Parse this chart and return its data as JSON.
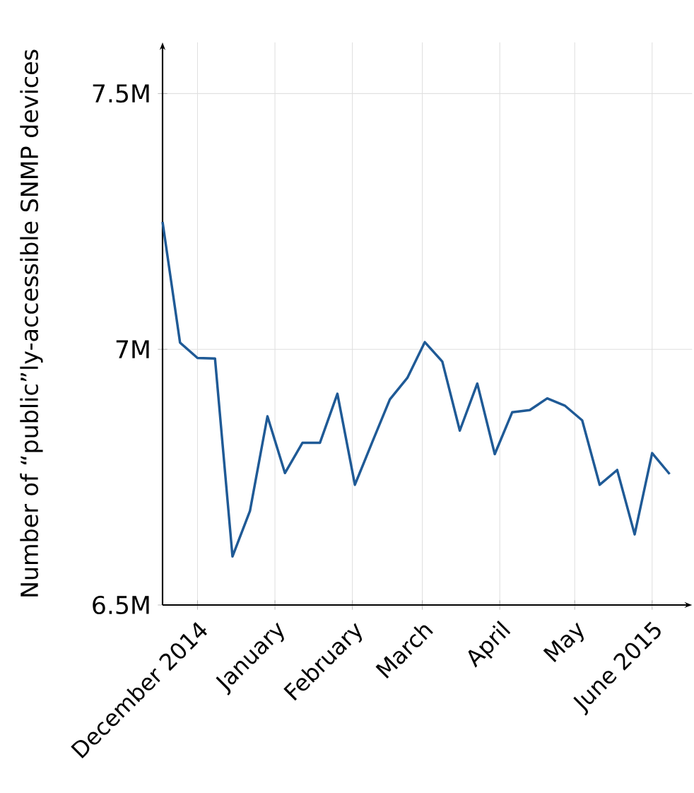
{
  "chart_data": {
    "type": "line",
    "ylabel": "Number of “public”ly-accessible SNMP devices",
    "x": [
      "2014-11-17",
      "2014-11-24",
      "2014-12-01",
      "2014-12-08",
      "2014-12-15",
      "2014-12-22",
      "2014-12-29",
      "2015-01-05",
      "2015-01-12",
      "2015-01-19",
      "2015-01-26",
      "2015-02-02",
      "2015-02-09",
      "2015-02-16",
      "2015-02-23",
      "2015-03-02",
      "2015-03-09",
      "2015-03-16",
      "2015-03-23",
      "2015-03-30",
      "2015-04-06",
      "2015-04-13",
      "2015-04-20",
      "2015-04-27",
      "2015-05-04",
      "2015-05-11",
      "2015-05-18",
      "2015-05-25",
      "2015-06-01",
      "2015-06-08"
    ],
    "series": [
      {
        "color": "#1f5a96",
        "values": [
          7.249,
          7.013,
          6.983,
          6.982,
          6.595,
          6.684,
          6.869,
          6.758,
          6.817,
          6.817,
          6.913,
          6.735,
          6.819,
          6.902,
          6.944,
          7.014,
          6.976,
          6.841,
          6.933,
          6.795,
          6.877,
          6.881,
          6.904,
          6.89,
          6.861,
          6.735,
          6.764,
          6.638,
          6.797,
          6.756
        ]
      }
    ],
    "xlim": [
      "2014-11-17",
      "2015-06-17"
    ],
    "xticks": [
      {
        "value": "2014-12-01",
        "label": "December 2014"
      },
      {
        "value": "2015-01-01",
        "label": "January"
      },
      {
        "value": "2015-02-01",
        "label": "February"
      },
      {
        "value": "2015-03-01",
        "label": "March"
      },
      {
        "value": "2015-04-01",
        "label": "April"
      },
      {
        "value": "2015-05-01",
        "label": "May"
      },
      {
        "value": "2015-06-01",
        "label": "June 2015"
      }
    ],
    "ylim": [
      6.5,
      7.6
    ],
    "yticks": [
      {
        "value": 6.5,
        "label": "6.5M"
      },
      {
        "value": 7,
        "label": "7M"
      },
      {
        "value": 7.5,
        "label": "7.5M"
      }
    ],
    "grid": true,
    "marker": "none",
    "line_style": "solid"
  }
}
